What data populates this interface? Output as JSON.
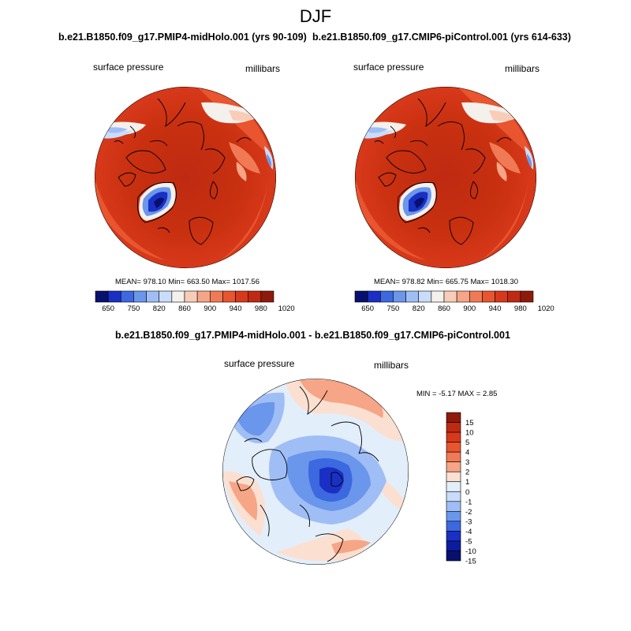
{
  "figure": {
    "title": "DJF"
  },
  "panels": [
    {
      "id": "top-left",
      "subtitle": "b.e21.B1850.f09_g17.PMIP4-midHolo.001 (yrs 90-109)",
      "left_label": "surface pressure",
      "right_label": "millibars",
      "stats": "MEAN= 978.10  Min= 663.50  Max= 1017.56",
      "colorbar_labels": [
        "650",
        "750",
        "820",
        "860",
        "900",
        "940",
        "980",
        "1020"
      ]
    },
    {
      "id": "top-right",
      "subtitle": "b.e21.B1850.f09_g17.CMIP6-piControl.001 (yrs 614-633)",
      "left_label": "surface pressure",
      "right_label": "millibars",
      "stats": "MEAN= 978.82  Min= 665.75  Max= 1018.30",
      "colorbar_labels": [
        "650",
        "750",
        "820",
        "860",
        "900",
        "940",
        "980",
        "1020"
      ]
    },
    {
      "id": "bottom-diff",
      "subtitle": "b.e21.B1850.f09_g17.PMIP4-midHolo.001 - b.e21.B1850.f09_g17.CMIP6-piControl.001",
      "left_label": "surface pressure",
      "right_label": "millibars",
      "stats": "MIN =  -5.17 MAX =   2.85",
      "colorbar_labels": [
        "15",
        "10",
        "5",
        "4",
        "3",
        "2",
        "1",
        "0",
        "-1",
        "-2",
        "-3",
        "-4",
        "-5",
        "-10",
        "-15"
      ]
    }
  ],
  "colors": {
    "abs_scale": [
      "#08106e",
      "#1a2fc4",
      "#3c68e0",
      "#6a96ec",
      "#9fbef5",
      "#c9dcf9",
      "#f4f0ec",
      "#f8cdb8",
      "#f6a586",
      "#f07a55",
      "#e8552e",
      "#d8391b",
      "#bf2a12",
      "#8e1a0b"
    ],
    "diff_scale": [
      "#8e1a0b",
      "#bf2a12",
      "#d8391b",
      "#e8552e",
      "#f07a55",
      "#f6a586",
      "#fbe0d2",
      "#e3eefb",
      "#c9dcf9",
      "#9fbef5",
      "#6a96ec",
      "#3c68e0",
      "#1a2fc4",
      "#0b1ca0",
      "#08106e"
    ]
  }
}
